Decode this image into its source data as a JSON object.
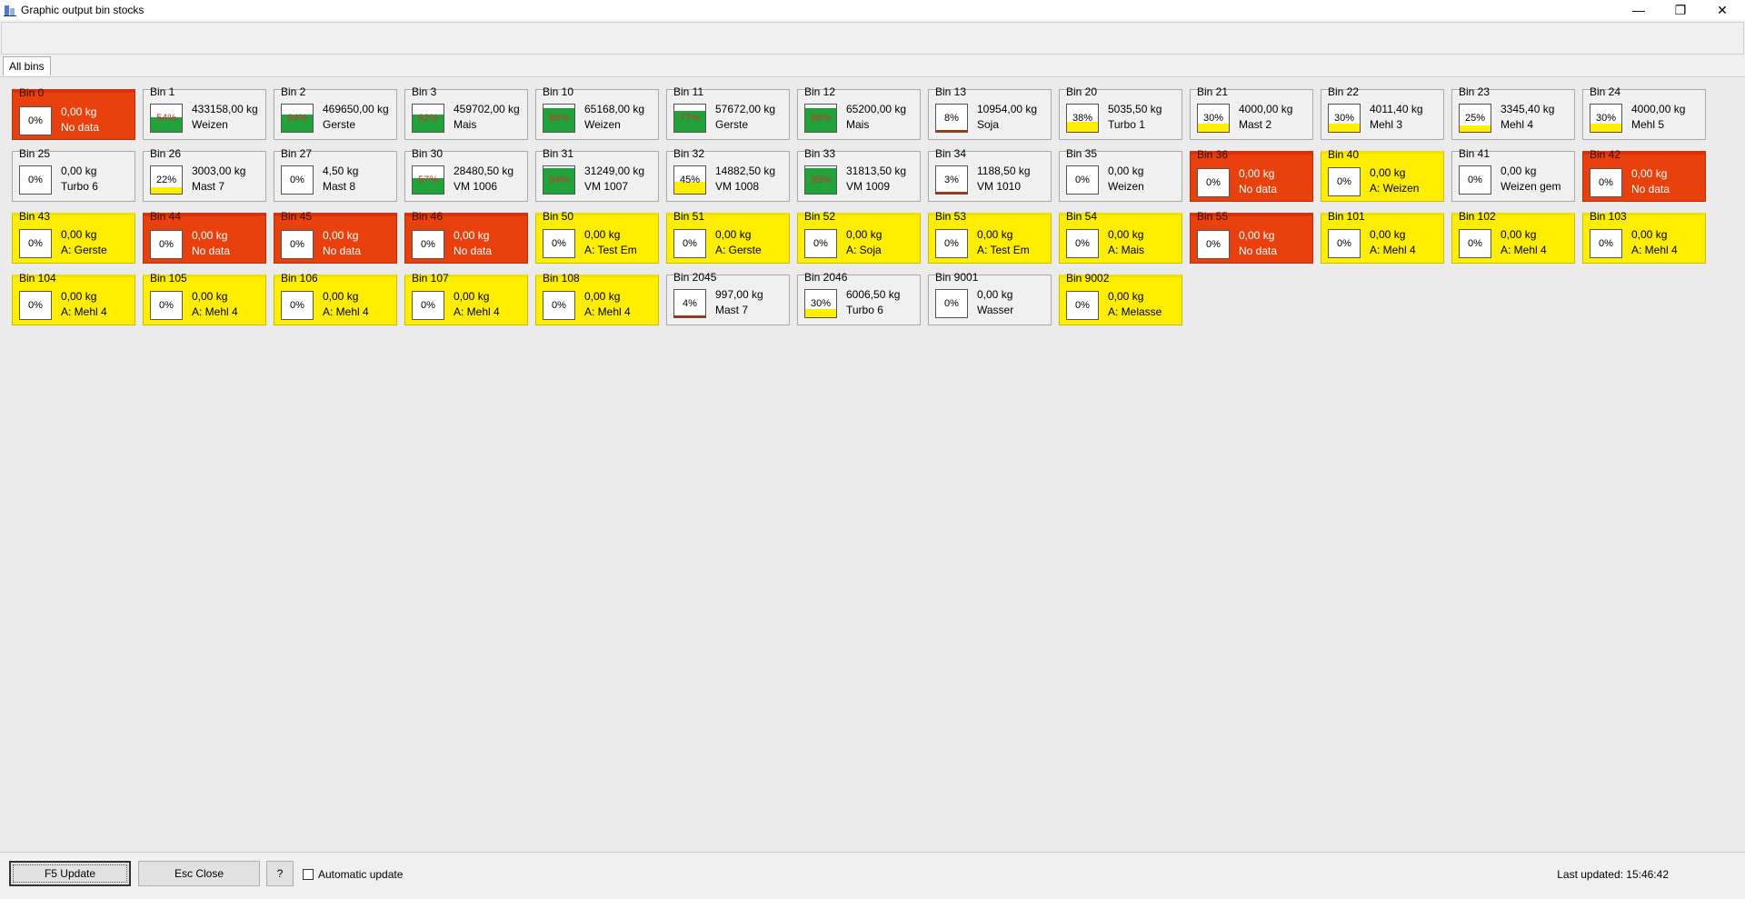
{
  "window": {
    "title": "Graphic output bin stocks",
    "minimize": "—",
    "restore": "❐",
    "close": "✕"
  },
  "tabs": [
    {
      "label": "All bins"
    }
  ],
  "colors": {
    "green": "#1fa33a",
    "yellow": "#ffee00",
    "red": "#e8410d",
    "dark_red": "#b32f05"
  },
  "bins": [
    {
      "name": "Bin 0",
      "weight": "0,00 kg",
      "product": "No data",
      "percent": "0%",
      "fill": 0,
      "status": "red"
    },
    {
      "name": "Bin 1",
      "weight": "433158,00 kg",
      "product": "Weizen",
      "percent": "54%",
      "fill": 54,
      "fill_color": "green",
      "status": "normal"
    },
    {
      "name": "Bin 2",
      "weight": "469650,00 kg",
      "product": "Gerste",
      "percent": "64%",
      "fill": 64,
      "fill_color": "green",
      "status": "normal"
    },
    {
      "name": "Bin 3",
      "weight": "459702,00 kg",
      "product": "Mais",
      "percent": "62%",
      "fill": 62,
      "fill_color": "green",
      "status": "normal"
    },
    {
      "name": "Bin 10",
      "weight": "65168,00 kg",
      "product": "Weizen",
      "percent": "86%",
      "fill": 86,
      "fill_color": "green",
      "status": "normal"
    },
    {
      "name": "Bin 11",
      "weight": "57672,00 kg",
      "product": "Gerste",
      "percent": "77%",
      "fill": 77,
      "fill_color": "green",
      "status": "normal"
    },
    {
      "name": "Bin 12",
      "weight": "65200,00 kg",
      "product": "Mais",
      "percent": "86%",
      "fill": 86,
      "fill_color": "green",
      "status": "normal"
    },
    {
      "name": "Bin 13",
      "weight": "10954,00 kg",
      "product": "Soja",
      "percent": "8%",
      "fill": 8,
      "fill_color": "red",
      "status": "normal"
    },
    {
      "name": "Bin 20",
      "weight": "5035,50 kg",
      "product": "Turbo 1",
      "percent": "38%",
      "fill": 38,
      "fill_color": "yellow",
      "status": "normal"
    },
    {
      "name": "Bin 21",
      "weight": "4000,00 kg",
      "product": "Mast 2",
      "percent": "30%",
      "fill": 30,
      "fill_color": "yellow",
      "status": "normal"
    },
    {
      "name": "Bin 22",
      "weight": "4011,40 kg",
      "product": "Mehl 3",
      "percent": "30%",
      "fill": 30,
      "fill_color": "yellow",
      "status": "normal"
    },
    {
      "name": "Bin 23",
      "weight": "3345,40 kg",
      "product": "Mehl 4",
      "percent": "25%",
      "fill": 25,
      "fill_color": "yellow",
      "status": "normal"
    },
    {
      "name": "Bin 24",
      "weight": "4000,00 kg",
      "product": "Mehl 5",
      "percent": "30%",
      "fill": 30,
      "fill_color": "yellow",
      "status": "normal"
    },
    {
      "name": "Bin 25",
      "weight": "0,00 kg",
      "product": "Turbo 6",
      "percent": "0%",
      "fill": 0,
      "status": "normal"
    },
    {
      "name": "Bin 26",
      "weight": "3003,00 kg",
      "product": "Mast 7",
      "percent": "22%",
      "fill": 22,
      "fill_color": "yellow",
      "status": "normal"
    },
    {
      "name": "Bin 27",
      "weight": "4,50 kg",
      "product": "Mast 8",
      "percent": "0%",
      "fill": 0,
      "status": "normal"
    },
    {
      "name": "Bin 30",
      "weight": "28480,50 kg",
      "product": "VM 1006",
      "percent": "57%",
      "fill": 57,
      "fill_color": "green",
      "status": "normal"
    },
    {
      "name": "Bin 31",
      "weight": "31249,00 kg",
      "product": "VM 1007",
      "percent": "94%",
      "fill": 94,
      "fill_color": "green",
      "status": "normal"
    },
    {
      "name": "Bin 32",
      "weight": "14882,50 kg",
      "product": "VM 1008",
      "percent": "45%",
      "fill": 45,
      "fill_color": "yellow",
      "status": "normal"
    },
    {
      "name": "Bin 33",
      "weight": "31813,50 kg",
      "product": "VM 1009",
      "percent": "95%",
      "fill": 95,
      "fill_color": "green",
      "status": "normal"
    },
    {
      "name": "Bin 34",
      "weight": "1188,50 kg",
      "product": "VM 1010",
      "percent": "3%",
      "fill": 3,
      "fill_color": "red",
      "status": "normal"
    },
    {
      "name": "Bin 35",
      "weight": "0,00 kg",
      "product": "Weizen",
      "percent": "0%",
      "fill": 0,
      "status": "normal"
    },
    {
      "name": "Bin 36",
      "weight": "0,00 kg",
      "product": "No data",
      "percent": "0%",
      "fill": 0,
      "status": "red"
    },
    {
      "name": "Bin 40",
      "weight": "0,00 kg",
      "product": "A: Weizen",
      "percent": "0%",
      "fill": 0,
      "status": "yellow"
    },
    {
      "name": "Bin 41",
      "weight": "0,00 kg",
      "product": "Weizen gem",
      "percent": "0%",
      "fill": 0,
      "status": "normal"
    },
    {
      "name": "Bin 42",
      "weight": "0,00 kg",
      "product": "No data",
      "percent": "0%",
      "fill": 0,
      "status": "red"
    },
    {
      "name": "Bin 43",
      "weight": "0,00 kg",
      "product": "A: Gerste",
      "percent": "0%",
      "fill": 0,
      "status": "yellow"
    },
    {
      "name": "Bin 44",
      "weight": "0,00 kg",
      "product": "No data",
      "percent": "0%",
      "fill": 0,
      "status": "red"
    },
    {
      "name": "Bin 45",
      "weight": "0,00 kg",
      "product": "No data",
      "percent": "0%",
      "fill": 0,
      "status": "red"
    },
    {
      "name": "Bin 46",
      "weight": "0,00 kg",
      "product": "No data",
      "percent": "0%",
      "fill": 0,
      "status": "red"
    },
    {
      "name": "Bin 50",
      "weight": "0,00 kg",
      "product": "A: Test Em",
      "percent": "0%",
      "fill": 0,
      "status": "yellow"
    },
    {
      "name": "Bin 51",
      "weight": "0,00 kg",
      "product": "A: Gerste",
      "percent": "0%",
      "fill": 0,
      "status": "yellow"
    },
    {
      "name": "Bin 52",
      "weight": "0,00 kg",
      "product": "A: Soja",
      "percent": "0%",
      "fill": 0,
      "status": "yellow"
    },
    {
      "name": "Bin 53",
      "weight": "0,00 kg",
      "product": "A: Test Em",
      "percent": "0%",
      "fill": 0,
      "status": "yellow"
    },
    {
      "name": "Bin 54",
      "weight": "0,00 kg",
      "product": "A: Mais",
      "percent": "0%",
      "fill": 0,
      "status": "yellow"
    },
    {
      "name": "Bin 55",
      "weight": "0,00 kg",
      "product": "No data",
      "percent": "0%",
      "fill": 0,
      "status": "red"
    },
    {
      "name": "Bin 101",
      "weight": "0,00 kg",
      "product": "A: Mehl 4",
      "percent": "0%",
      "fill": 0,
      "status": "yellow"
    },
    {
      "name": "Bin 102",
      "weight": "0,00 kg",
      "product": "A: Mehl 4",
      "percent": "0%",
      "fill": 0,
      "status": "yellow"
    },
    {
      "name": "Bin 103",
      "weight": "0,00 kg",
      "product": "A: Mehl 4",
      "percent": "0%",
      "fill": 0,
      "status": "yellow"
    },
    {
      "name": "Bin 104",
      "weight": "0,00 kg",
      "product": "A: Mehl 4",
      "percent": "0%",
      "fill": 0,
      "status": "yellow"
    },
    {
      "name": "Bin 105",
      "weight": "0,00 kg",
      "product": "A: Mehl 4",
      "percent": "0%",
      "fill": 0,
      "status": "yellow"
    },
    {
      "name": "Bin 106",
      "weight": "0,00 kg",
      "product": "A: Mehl 4",
      "percent": "0%",
      "fill": 0,
      "status": "yellow"
    },
    {
      "name": "Bin 107",
      "weight": "0,00 kg",
      "product": "A: Mehl 4",
      "percent": "0%",
      "fill": 0,
      "status": "yellow"
    },
    {
      "name": "Bin 108",
      "weight": "0,00 kg",
      "product": "A: Mehl 4",
      "percent": "0%",
      "fill": 0,
      "status": "yellow"
    },
    {
      "name": "Bin 2045",
      "weight": "997,00 kg",
      "product": "Mast 7",
      "percent": "4%",
      "fill": 4,
      "fill_color": "red",
      "status": "normal"
    },
    {
      "name": "Bin 2046",
      "weight": "6006,50 kg",
      "product": "Turbo 6",
      "percent": "30%",
      "fill": 30,
      "fill_color": "yellow",
      "status": "normal"
    },
    {
      "name": "Bin 9001",
      "weight": "0,00 kg",
      "product": "Wasser",
      "percent": "0%",
      "fill": 0,
      "status": "normal"
    },
    {
      "name": "Bin 9002",
      "weight": "0,00 kg",
      "product": "A: Melasse",
      "percent": "0%",
      "fill": 0,
      "status": "yellow"
    }
  ],
  "footer": {
    "update_label": "F5 Update",
    "close_label": "Esc Close",
    "help_label": "?",
    "auto_update_label": "Automatic update",
    "auto_update_checked": false,
    "last_updated": "Last updated: 15:46:42"
  }
}
